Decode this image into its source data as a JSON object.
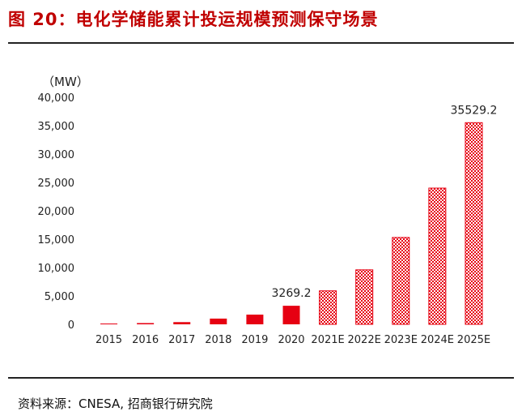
{
  "figure": {
    "title": "图 20：电化学储能累计投运规模预测保守场景",
    "source": "资料来源：CNESA, 招商银行研究院"
  },
  "colors": {
    "title": "#c00000",
    "bar_actual": "#e60012",
    "bar_forecast": "#e60012",
    "forecast_pattern_bg": "#ffffff"
  },
  "chart_data": {
    "type": "bar",
    "unit_label": "（MW）",
    "categories": [
      "2015",
      "2016",
      "2017",
      "2018",
      "2019",
      "2020",
      "2021E",
      "2022E",
      "2023E",
      "2024E",
      "2025E"
    ],
    "values": [
      140,
      220,
      390,
      1010,
      1710,
      3269.2,
      5900,
      9600,
      15300,
      24000,
      35529.2
    ],
    "forecast_from_index": 6,
    "data_labels": [
      {
        "index": 5,
        "text": "3269.2"
      },
      {
        "index": 10,
        "text": "35529.2"
      }
    ],
    "yticks": [
      0,
      5000,
      10000,
      15000,
      20000,
      25000,
      30000,
      35000,
      40000
    ],
    "ytick_labels": [
      "0",
      "5,000",
      "10,000",
      "15,000",
      "20,000",
      "25,000",
      "30,000",
      "35,000",
      "40,000"
    ],
    "ylim": [
      0,
      40000
    ],
    "grid": false,
    "legend": "none"
  }
}
